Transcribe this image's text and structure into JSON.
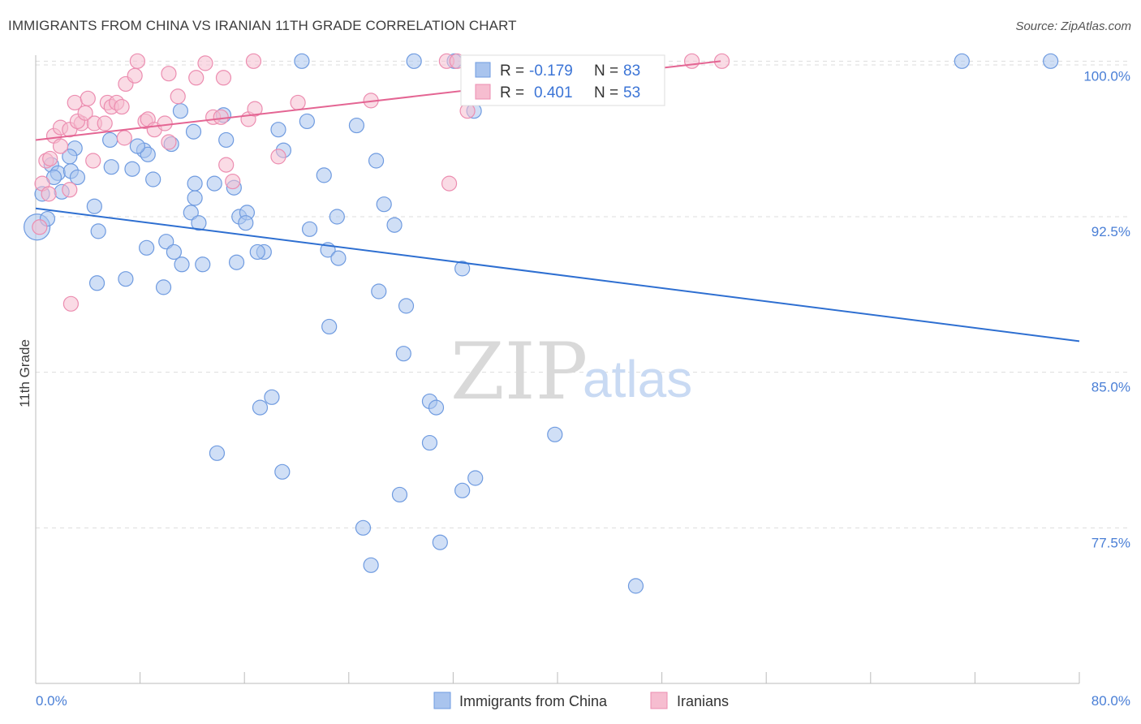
{
  "header": {
    "title": "IMMIGRANTS FROM CHINA VS IRANIAN 11TH GRADE CORRELATION CHART",
    "source": "Source: ZipAtlas.com"
  },
  "watermark": {
    "zip": "ZIP",
    "atlas": "atlas"
  },
  "legend": {
    "china": {
      "r_label": "R = ",
      "r_value": "-0.179",
      "n_label": "N = ",
      "n_value": "83"
    },
    "iranians": {
      "r_label": "R = ",
      "r_value": "0.401",
      "n_label": "N = ",
      "n_value": "53"
    }
  },
  "bottom_legend": {
    "china": "Immigrants from China",
    "iranians": "Iranians"
  },
  "colors": {
    "china_fill": "#a9c4ee",
    "china_stroke": "#6f9be0",
    "china_line": "#2e6fd1",
    "iran_fill": "#f6bdd0",
    "iran_stroke": "#ec8db0",
    "iran_line": "#e46593",
    "grid": "#dddddd",
    "axis_text": "#4a7fd6"
  },
  "chart_data": {
    "type": "scatter",
    "title": "IMMIGRANTS FROM CHINA VS IRANIAN 11TH GRADE CORRELATION CHART",
    "xlabel": "",
    "ylabel": "11th Grade",
    "xlim": [
      0,
      80
    ],
    "ylim": [
      70.0,
      100.6
    ],
    "x_tick_labels": [
      "0.0%",
      "80.0%"
    ],
    "y_ticks": [
      77.5,
      85.0,
      92.5,
      100.0
    ],
    "y_tick_labels": [
      "77.5%",
      "85.0%",
      "92.5%",
      "100.0%"
    ],
    "grid": true,
    "series": [
      {
        "name": "Immigrants from China",
        "color": "#a9c4ee",
        "trend": {
          "x": [
            0,
            80
          ],
          "y": [
            92.9,
            86.5
          ]
        },
        "points": [
          [
            0.1,
            92.0
          ],
          [
            0.5,
            93.6
          ],
          [
            1.2,
            95.0
          ],
          [
            1.7,
            94.6
          ],
          [
            1.4,
            94.4
          ],
          [
            2.0,
            93.7
          ],
          [
            2.7,
            94.7
          ],
          [
            3.0,
            95.8
          ],
          [
            3.2,
            94.4
          ],
          [
            2.6,
            95.4
          ],
          [
            0.9,
            92.4
          ],
          [
            5.8,
            94.9
          ],
          [
            7.4,
            94.8
          ],
          [
            8.3,
            95.7
          ],
          [
            8.6,
            95.5
          ],
          [
            9.0,
            94.3
          ],
          [
            7.8,
            95.9
          ],
          [
            10.4,
            96.0
          ],
          [
            11.1,
            97.6
          ],
          [
            12.1,
            96.6
          ],
          [
            12.2,
            94.1
          ],
          [
            11.9,
            92.7
          ],
          [
            13.7,
            94.1
          ],
          [
            12.5,
            92.2
          ],
          [
            10.0,
            91.3
          ],
          [
            10.6,
            90.8
          ],
          [
            12.8,
            90.2
          ],
          [
            11.2,
            90.2
          ],
          [
            14.4,
            97.4
          ],
          [
            14.6,
            96.2
          ],
          [
            15.2,
            93.9
          ],
          [
            15.6,
            92.5
          ],
          [
            16.2,
            92.7
          ],
          [
            15.4,
            90.3
          ],
          [
            16.1,
            92.2
          ],
          [
            17.5,
            90.8
          ],
          [
            18.6,
            96.7
          ],
          [
            19.0,
            95.7
          ],
          [
            20.8,
            97.1
          ],
          [
            22.1,
            94.5
          ],
          [
            22.4,
            90.9
          ],
          [
            23.1,
            92.5
          ],
          [
            23.2,
            90.5
          ],
          [
            24.6,
            96.9
          ],
          [
            26.1,
            95.2
          ],
          [
            26.7,
            93.1
          ],
          [
            27.5,
            92.1
          ],
          [
            28.4,
            88.2
          ],
          [
            28.2,
            85.9
          ],
          [
            29.0,
            100.0
          ],
          [
            30.2,
            83.6
          ],
          [
            30.7,
            83.3
          ],
          [
            32.7,
            90.0
          ],
          [
            33.6,
            97.6
          ],
          [
            4.8,
            91.8
          ],
          [
            6.9,
            89.5
          ],
          [
            4.7,
            89.3
          ],
          [
            9.8,
            89.1
          ],
          [
            17.0,
            90.8
          ],
          [
            26.3,
            88.9
          ],
          [
            22.5,
            87.2
          ],
          [
            18.1,
            83.8
          ],
          [
            17.2,
            83.3
          ],
          [
            13.9,
            81.1
          ],
          [
            18.9,
            80.2
          ],
          [
            30.2,
            81.6
          ],
          [
            27.9,
            79.1
          ],
          [
            31.0,
            76.8
          ],
          [
            25.1,
            77.5
          ],
          [
            32.7,
            79.3
          ],
          [
            33.7,
            79.9
          ],
          [
            39.8,
            82.0
          ],
          [
            25.7,
            75.7
          ],
          [
            46.0,
            74.7
          ],
          [
            20.4,
            100.0
          ],
          [
            32.1,
            100.0
          ],
          [
            71.0,
            100.0
          ],
          [
            77.8,
            100.0
          ],
          [
            12.2,
            93.4
          ],
          [
            21.0,
            91.9
          ],
          [
            5.7,
            96.2
          ],
          [
            4.5,
            93.0
          ],
          [
            8.5,
            91.0
          ]
        ]
      },
      {
        "name": "Iranians",
        "color": "#f6bdd0",
        "trend": {
          "x": [
            0,
            52.5
          ],
          "y": [
            96.2,
            100.0
          ]
        },
        "points": [
          [
            0.3,
            92.0
          ],
          [
            0.5,
            94.1
          ],
          [
            0.8,
            95.2
          ],
          [
            1.0,
            93.6
          ],
          [
            1.1,
            95.3
          ],
          [
            1.4,
            96.4
          ],
          [
            1.9,
            95.9
          ],
          [
            1.9,
            96.8
          ],
          [
            2.6,
            96.7
          ],
          [
            3.0,
            98.0
          ],
          [
            3.5,
            97.0
          ],
          [
            3.2,
            97.1
          ],
          [
            3.8,
            97.5
          ],
          [
            4.0,
            98.2
          ],
          [
            4.5,
            97.0
          ],
          [
            5.3,
            97.0
          ],
          [
            5.5,
            98.0
          ],
          [
            5.8,
            97.8
          ],
          [
            6.2,
            98.0
          ],
          [
            6.6,
            97.8
          ],
          [
            6.9,
            98.9
          ],
          [
            7.6,
            99.3
          ],
          [
            7.8,
            100.0
          ],
          [
            6.8,
            96.3
          ],
          [
            8.4,
            97.1
          ],
          [
            8.6,
            97.2
          ],
          [
            9.1,
            96.7
          ],
          [
            9.9,
            97.0
          ],
          [
            10.2,
            96.1
          ],
          [
            10.2,
            99.4
          ],
          [
            10.9,
            98.3
          ],
          [
            12.3,
            99.2
          ],
          [
            13.0,
            99.9
          ],
          [
            13.6,
            97.3
          ],
          [
            14.2,
            97.3
          ],
          [
            14.4,
            99.2
          ],
          [
            14.6,
            95.0
          ],
          [
            15.1,
            94.2
          ],
          [
            16.3,
            97.2
          ],
          [
            16.8,
            97.7
          ],
          [
            16.7,
            100.0
          ],
          [
            18.6,
            95.4
          ],
          [
            20.1,
            98.0
          ],
          [
            25.7,
            98.1
          ],
          [
            31.5,
            100.0
          ],
          [
            32.3,
            100.0
          ],
          [
            33.1,
            97.6
          ],
          [
            31.7,
            94.1
          ],
          [
            2.7,
            88.3
          ],
          [
            2.6,
            93.8
          ],
          [
            4.4,
            95.2
          ],
          [
            50.3,
            100.0
          ],
          [
            52.6,
            100.0
          ]
        ]
      }
    ]
  }
}
